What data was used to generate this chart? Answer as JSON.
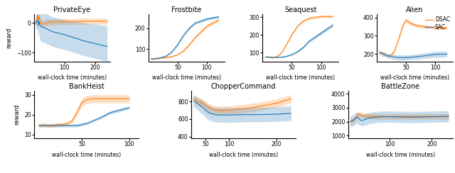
{
  "dsac_color": "#ff7f0e",
  "sac_color": "#1f77b4",
  "dsac_alpha": 0.25,
  "sac_alpha": 0.25,
  "xlabel": "wall-clock time (minutes)",
  "ylabel": "reward",
  "legend_labels": [
    "DSAC",
    "SAC"
  ],
  "games_row1": [
    "PrivateEye",
    "Frostbite",
    "Seaquest",
    "Alien"
  ],
  "games_row2": [
    "BankHeist",
    "ChopperCommand",
    "BattleZone"
  ],
  "PrivateEye": {
    "xlim": [
      0,
      250
    ],
    "xticks": [
      100,
      200
    ],
    "ylim": [
      -130,
      30
    ],
    "yticks": [
      -100,
      0
    ],
    "dsac_x": [
      5,
      10,
      12,
      14,
      16,
      18,
      20,
      25,
      30,
      40,
      50,
      60,
      80,
      100,
      130,
      160,
      200,
      240
    ],
    "dsac_y": [
      -5,
      20,
      25,
      10,
      20,
      15,
      5,
      -5,
      -5,
      0,
      2,
      3,
      3,
      4,
      4,
      5,
      5,
      5
    ],
    "dsac_lo": [
      -15,
      5,
      10,
      -5,
      5,
      0,
      -10,
      -15,
      -15,
      -10,
      -8,
      -7,
      -7,
      -6,
      -6,
      -5,
      -5,
      -5
    ],
    "dsac_hi": [
      5,
      35,
      40,
      25,
      35,
      30,
      20,
      5,
      5,
      15,
      12,
      13,
      13,
      14,
      14,
      15,
      15,
      15
    ],
    "sac_x": [
      5,
      10,
      12,
      14,
      16,
      18,
      20,
      25,
      30,
      40,
      50,
      60,
      80,
      100,
      130,
      160,
      200,
      240
    ],
    "sac_y": [
      0,
      10,
      5,
      -10,
      5,
      -5,
      -10,
      -15,
      -15,
      -20,
      -25,
      -30,
      -35,
      -40,
      -50,
      -60,
      -70,
      -80
    ],
    "sac_lo": [
      -20,
      -20,
      -30,
      -50,
      -30,
      -50,
      -60,
      -65,
      -65,
      -70,
      -75,
      -80,
      -85,
      -90,
      -100,
      -110,
      -120,
      -130
    ],
    "sac_hi": [
      20,
      40,
      40,
      30,
      40,
      40,
      40,
      35,
      35,
      30,
      25,
      20,
      15,
      10,
      5,
      0,
      -5,
      -10
    ]
  },
  "Frostbite": {
    "xlim": [
      0,
      130
    ],
    "xticks": [
      50,
      100
    ],
    "ylim": [
      40,
      270
    ],
    "yticks": [
      100,
      200
    ],
    "dsac_x": [
      5,
      10,
      20,
      30,
      40,
      50,
      60,
      70,
      80,
      100,
      120
    ],
    "dsac_y": [
      52,
      52,
      55,
      58,
      63,
      72,
      90,
      120,
      155,
      210,
      240
    ],
    "dsac_lo": [
      49,
      49,
      52,
      55,
      59,
      68,
      85,
      114,
      148,
      202,
      232
    ],
    "dsac_hi": [
      55,
      55,
      58,
      61,
      67,
      76,
      95,
      126,
      162,
      218,
      248
    ],
    "sac_x": [
      5,
      10,
      20,
      30,
      40,
      50,
      60,
      70,
      80,
      100,
      120
    ],
    "sac_y": [
      52,
      53,
      57,
      65,
      85,
      120,
      165,
      200,
      225,
      245,
      255
    ],
    "sac_lo": [
      49,
      50,
      54,
      61,
      80,
      114,
      158,
      193,
      218,
      238,
      248
    ],
    "sac_hi": [
      55,
      56,
      60,
      69,
      90,
      126,
      172,
      207,
      232,
      252,
      262
    ]
  },
  "Seaquest": {
    "xlim": [
      0,
      130
    ],
    "xticks": [
      50,
      100
    ],
    "ylim": [
      50,
      320
    ],
    "yticks": [
      100,
      200,
      300
    ],
    "dsac_x": [
      5,
      10,
      15,
      20,
      25,
      30,
      35,
      40,
      50,
      60,
      70,
      80,
      100,
      120
    ],
    "dsac_y": [
      75,
      75,
      73,
      73,
      78,
      90,
      110,
      140,
      200,
      250,
      280,
      295,
      305,
      305
    ],
    "dsac_lo": [
      71,
      71,
      69,
      69,
      74,
      86,
      105,
      134,
      193,
      243,
      273,
      288,
      298,
      298
    ],
    "dsac_hi": [
      79,
      79,
      77,
      77,
      82,
      94,
      115,
      146,
      207,
      257,
      287,
      302,
      312,
      312
    ],
    "sac_x": [
      5,
      10,
      15,
      20,
      25,
      30,
      35,
      40,
      50,
      60,
      70,
      80,
      100,
      120
    ],
    "sac_y": [
      75,
      75,
      73,
      73,
      73,
      73,
      75,
      78,
      88,
      105,
      130,
      165,
      210,
      255
    ],
    "sac_lo": [
      71,
      71,
      69,
      69,
      69,
      69,
      71,
      74,
      83,
      99,
      123,
      157,
      200,
      245
    ],
    "sac_hi": [
      79,
      79,
      77,
      77,
      77,
      77,
      79,
      82,
      93,
      111,
      137,
      173,
      220,
      265
    ]
  },
  "Alien": {
    "xlim": [
      0,
      130
    ],
    "xticks": [
      50,
      100
    ],
    "ylim": [
      160,
      420
    ],
    "yticks": [
      200,
      300,
      400
    ],
    "dsac_x": [
      5,
      10,
      15,
      20,
      25,
      30,
      35,
      40,
      45,
      50,
      55,
      60,
      70,
      80,
      100,
      120
    ],
    "dsac_y": [
      205,
      205,
      195,
      190,
      195,
      215,
      255,
      305,
      355,
      385,
      375,
      365,
      355,
      350,
      345,
      342
    ],
    "dsac_lo": [
      198,
      198,
      188,
      183,
      188,
      207,
      246,
      295,
      344,
      374,
      364,
      354,
      345,
      340,
      335,
      332
    ],
    "dsac_hi": [
      212,
      212,
      202,
      197,
      202,
      223,
      264,
      315,
      366,
      396,
      386,
      376,
      365,
      360,
      355,
      352
    ],
    "sac_x": [
      5,
      10,
      15,
      20,
      25,
      30,
      35,
      40,
      45,
      50,
      55,
      60,
      70,
      80,
      100,
      120
    ],
    "sac_y": [
      210,
      202,
      196,
      190,
      187,
      184,
      182,
      181,
      181,
      181,
      182,
      183,
      186,
      190,
      198,
      200
    ],
    "sac_lo": [
      198,
      190,
      184,
      178,
      174,
      170,
      168,
      167,
      167,
      167,
      168,
      169,
      172,
      175,
      182,
      184
    ],
    "sac_hi": [
      222,
      214,
      208,
      202,
      200,
      198,
      196,
      195,
      195,
      195,
      196,
      197,
      200,
      205,
      214,
      216
    ]
  },
  "BankHeist": {
    "xlim": [
      0,
      110
    ],
    "xticks": [
      50,
      100
    ],
    "ylim": [
      8,
      32
    ],
    "yticks": [
      10,
      20,
      30
    ],
    "dsac_x": [
      5,
      10,
      15,
      20,
      25,
      30,
      35,
      40,
      45,
      50,
      55,
      60,
      70,
      80,
      100
    ],
    "dsac_y": [
      14.5,
      14.8,
      14.5,
      14.5,
      15.0,
      15.0,
      15.5,
      17.0,
      21.0,
      26.0,
      27.5,
      28.0,
      28.0,
      28.0,
      28.0
    ],
    "dsac_lo": [
      13.5,
      13.8,
      13.5,
      13.5,
      14.0,
      14.0,
      14.5,
      16.0,
      19.5,
      24.0,
      25.5,
      26.0,
      26.0,
      26.0,
      26.0
    ],
    "dsac_hi": [
      15.5,
      15.8,
      15.5,
      15.5,
      16.0,
      16.0,
      16.5,
      18.0,
      22.5,
      28.0,
      29.5,
      30.0,
      30.0,
      30.0,
      30.0
    ],
    "sac_x": [
      5,
      10,
      15,
      20,
      25,
      30,
      35,
      40,
      45,
      50,
      55,
      60,
      70,
      80,
      100
    ],
    "sac_y": [
      14.5,
      14.5,
      14.5,
      14.5,
      14.5,
      14.5,
      14.5,
      14.5,
      14.5,
      15.0,
      15.5,
      16.5,
      18.5,
      21.0,
      23.5
    ],
    "sac_lo": [
      13.8,
      13.8,
      13.8,
      13.8,
      13.8,
      13.8,
      13.8,
      13.8,
      13.8,
      14.3,
      14.8,
      15.8,
      17.8,
      20.2,
      22.7
    ],
    "sac_hi": [
      15.2,
      15.2,
      15.2,
      15.2,
      15.2,
      15.2,
      15.2,
      15.2,
      15.2,
      15.7,
      16.2,
      17.2,
      19.2,
      21.8,
      24.3
    ]
  },
  "ChopperCommand": {
    "xlim": [
      20,
      240
    ],
    "xticks": [
      50,
      100,
      200
    ],
    "ylim": [
      380,
      920
    ],
    "yticks": [
      400,
      600,
      800
    ],
    "dsac_x": [
      25,
      30,
      35,
      40,
      45,
      50,
      55,
      60,
      70,
      80,
      100,
      130,
      160,
      200,
      230
    ],
    "dsac_y": [
      830,
      815,
      800,
      790,
      775,
      760,
      740,
      720,
      700,
      695,
      700,
      715,
      740,
      780,
      830
    ],
    "dsac_lo": [
      790,
      772,
      756,
      745,
      729,
      713,
      692,
      671,
      650,
      645,
      651,
      666,
      692,
      733,
      783
    ],
    "dsac_hi": [
      870,
      858,
      844,
      835,
      821,
      807,
      788,
      769,
      750,
      745,
      749,
      764,
      788,
      827,
      877
    ],
    "sac_x": [
      25,
      30,
      35,
      40,
      45,
      50,
      55,
      60,
      70,
      80,
      100,
      130,
      160,
      200,
      230
    ],
    "sac_y": [
      810,
      790,
      770,
      750,
      730,
      700,
      680,
      665,
      650,
      645,
      645,
      650,
      650,
      655,
      665
    ],
    "sac_lo": [
      740,
      718,
      696,
      674,
      652,
      620,
      598,
      583,
      567,
      562,
      562,
      567,
      567,
      572,
      582
    ],
    "sac_hi": [
      880,
      862,
      844,
      826,
      808,
      780,
      762,
      747,
      733,
      728,
      728,
      733,
      733,
      738,
      748
    ]
  },
  "BattleZone": {
    "xlim": [
      0,
      250
    ],
    "xticks": [
      100,
      200
    ],
    "ylim": [
      800,
      4200
    ],
    "yticks": [
      1000,
      2000,
      3000,
      4000
    ],
    "dsac_x": [
      5,
      10,
      15,
      20,
      25,
      28,
      30,
      35,
      40,
      50,
      60,
      80,
      100,
      130,
      160,
      200,
      240
    ],
    "dsac_y": [
      2000,
      2050,
      2150,
      2350,
      2500,
      2520,
      2500,
      2450,
      2400,
      2380,
      2370,
      2360,
      2360,
      2360,
      2360,
      2360,
      2360
    ],
    "dsac_lo": [
      1800,
      1850,
      1950,
      2150,
      2300,
      2320,
      2300,
      2250,
      2200,
      2180,
      2170,
      2160,
      2160,
      2160,
      2160,
      2160,
      2160
    ],
    "dsac_hi": [
      2200,
      2250,
      2350,
      2550,
      2700,
      2720,
      2700,
      2650,
      2600,
      2580,
      2570,
      2560,
      2560,
      2560,
      2560,
      2560,
      2560
    ],
    "sac_x": [
      5,
      10,
      15,
      20,
      25,
      28,
      30,
      35,
      40,
      50,
      60,
      80,
      100,
      130,
      160,
      200,
      240
    ],
    "sac_y": [
      2000,
      2050,
      2150,
      2300,
      2250,
      2150,
      2100,
      2100,
      2150,
      2250,
      2300,
      2350,
      2350,
      2330,
      2320,
      2350,
      2380
    ],
    "sac_lo": [
      1600,
      1650,
      1750,
      1900,
      1850,
      1750,
      1700,
      1700,
      1750,
      1850,
      1900,
      1950,
      1950,
      1930,
      1920,
      1950,
      1980
    ],
    "sac_hi": [
      2400,
      2450,
      2550,
      2700,
      2650,
      2550,
      2500,
      2500,
      2550,
      2650,
      2700,
      2750,
      2750,
      2730,
      2720,
      2750,
      2780
    ]
  }
}
